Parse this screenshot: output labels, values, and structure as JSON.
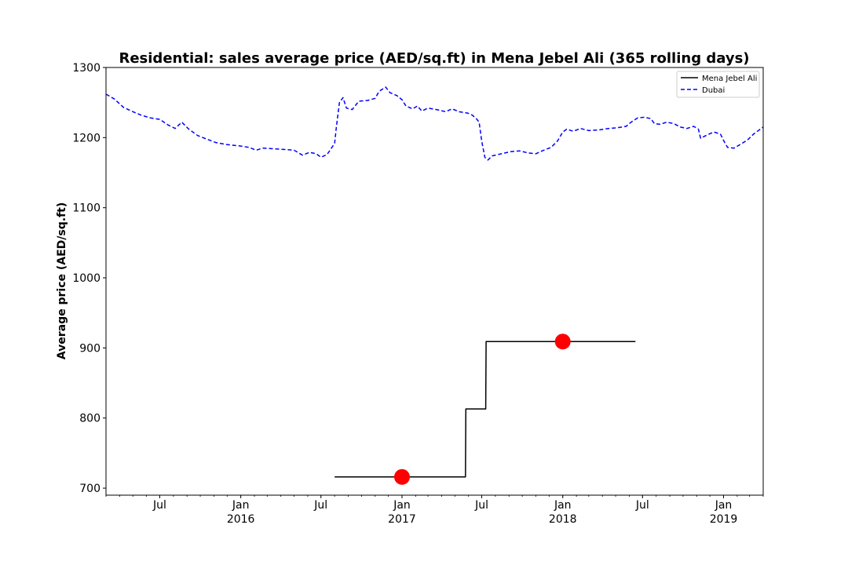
{
  "chart_data": {
    "type": "line",
    "title": "Residential: sales average price (AED/sq.ft) in Mena Jebel Ali (365 rolling days)",
    "xlabel": "",
    "ylabel": "Average price (AED/sq.ft)",
    "xlim": [
      "2015-03-01",
      "2019-04-01"
    ],
    "ylim": [
      690,
      1300
    ],
    "yticks": [
      700,
      800,
      900,
      1000,
      1100,
      1200,
      1300
    ],
    "xticks": [
      {
        "date": "2015-07-01",
        "label": "Jul",
        "year": ""
      },
      {
        "date": "2016-01-01",
        "label": "Jan",
        "year": "2016"
      },
      {
        "date": "2016-07-01",
        "label": "Jul",
        "year": ""
      },
      {
        "date": "2017-01-01",
        "label": "Jan",
        "year": "2017"
      },
      {
        "date": "2017-07-01",
        "label": "Jul",
        "year": ""
      },
      {
        "date": "2018-01-01",
        "label": "Jan",
        "year": "2018"
      },
      {
        "date": "2018-07-01",
        "label": "Jul",
        "year": ""
      },
      {
        "date": "2019-01-01",
        "label": "Jan",
        "year": "2019"
      }
    ],
    "grid": false,
    "legend_position": "top-right",
    "series": [
      {
        "name": "Mena Jebel Ali",
        "color": "#000000",
        "style": "solid",
        "step": true,
        "points": [
          [
            "2016-08-01",
            716
          ],
          [
            "2017-05-25",
            716
          ],
          [
            "2017-05-26",
            813
          ],
          [
            "2017-07-10",
            813
          ],
          [
            "2017-07-11",
            909
          ],
          [
            "2018-06-15",
            909
          ]
        ]
      },
      {
        "name": "Dubai",
        "color": "#0000ff",
        "style": "dashed",
        "step": false,
        "points": [
          [
            "2015-03-01",
            1262
          ],
          [
            "2015-03-20",
            1255
          ],
          [
            "2015-04-10",
            1243
          ],
          [
            "2015-05-01",
            1237
          ],
          [
            "2015-05-20",
            1232
          ],
          [
            "2015-06-10",
            1228
          ],
          [
            "2015-07-01",
            1226
          ],
          [
            "2015-07-20",
            1218
          ],
          [
            "2015-08-05",
            1213
          ],
          [
            "2015-08-20",
            1222
          ],
          [
            "2015-09-05",
            1212
          ],
          [
            "2015-09-25",
            1203
          ],
          [
            "2015-10-15",
            1198
          ],
          [
            "2015-11-05",
            1193
          ],
          [
            "2015-12-01",
            1190
          ],
          [
            "2016-01-01",
            1188
          ],
          [
            "2016-01-20",
            1186
          ],
          [
            "2016-02-05",
            1182
          ],
          [
            "2016-02-20",
            1185
          ],
          [
            "2016-03-15",
            1184
          ],
          [
            "2016-04-10",
            1183
          ],
          [
            "2016-05-01",
            1182
          ],
          [
            "2016-05-20",
            1175
          ],
          [
            "2016-06-05",
            1179
          ],
          [
            "2016-06-20",
            1177
          ],
          [
            "2016-07-01",
            1172
          ],
          [
            "2016-07-15",
            1176
          ],
          [
            "2016-07-25",
            1185
          ],
          [
            "2016-08-01",
            1192
          ],
          [
            "2016-08-05",
            1215
          ],
          [
            "2016-08-12",
            1250
          ],
          [
            "2016-08-20",
            1257
          ],
          [
            "2016-08-28",
            1242
          ],
          [
            "2016-09-10",
            1240
          ],
          [
            "2016-09-25",
            1252
          ],
          [
            "2016-10-15",
            1253
          ],
          [
            "2016-11-01",
            1256
          ],
          [
            "2016-11-10",
            1266
          ],
          [
            "2016-11-25",
            1272
          ],
          [
            "2016-12-05",
            1264
          ],
          [
            "2016-12-20",
            1260
          ],
          [
            "2017-01-01",
            1254
          ],
          [
            "2017-01-10",
            1245
          ],
          [
            "2017-01-25",
            1241
          ],
          [
            "2017-02-05",
            1245
          ],
          [
            "2017-02-15",
            1238
          ],
          [
            "2017-03-01",
            1242
          ],
          [
            "2017-03-20",
            1240
          ],
          [
            "2017-04-10",
            1237
          ],
          [
            "2017-04-25",
            1241
          ],
          [
            "2017-05-10",
            1237
          ],
          [
            "2017-05-30",
            1235
          ],
          [
            "2017-06-10",
            1232
          ],
          [
            "2017-06-20",
            1226
          ],
          [
            "2017-06-25",
            1222
          ],
          [
            "2017-07-01",
            1195
          ],
          [
            "2017-07-08",
            1172
          ],
          [
            "2017-07-15",
            1168
          ],
          [
            "2017-07-25",
            1174
          ],
          [
            "2017-08-15",
            1177
          ],
          [
            "2017-09-05",
            1180
          ],
          [
            "2017-09-25",
            1181
          ],
          [
            "2017-10-15",
            1178
          ],
          [
            "2017-11-01",
            1177
          ],
          [
            "2017-11-15",
            1181
          ],
          [
            "2017-12-05",
            1186
          ],
          [
            "2017-12-20",
            1195
          ],
          [
            "2018-01-01",
            1208
          ],
          [
            "2018-01-10",
            1212
          ],
          [
            "2018-01-25",
            1209
          ],
          [
            "2018-02-10",
            1213
          ],
          [
            "2018-03-01",
            1210
          ],
          [
            "2018-03-25",
            1211
          ],
          [
            "2018-04-15",
            1213
          ],
          [
            "2018-05-05",
            1214
          ],
          [
            "2018-05-25",
            1216
          ],
          [
            "2018-06-05",
            1222
          ],
          [
            "2018-06-20",
            1228
          ],
          [
            "2018-07-05",
            1229
          ],
          [
            "2018-07-20",
            1227
          ],
          [
            "2018-07-28",
            1220
          ],
          [
            "2018-08-10",
            1219
          ],
          [
            "2018-08-25",
            1222
          ],
          [
            "2018-09-10",
            1220
          ],
          [
            "2018-09-25",
            1215
          ],
          [
            "2018-10-10",
            1213
          ],
          [
            "2018-10-25",
            1216
          ],
          [
            "2018-11-05",
            1212
          ],
          [
            "2018-11-10",
            1199
          ],
          [
            "2018-11-25",
            1204
          ],
          [
            "2018-12-10",
            1208
          ],
          [
            "2018-12-25",
            1205
          ],
          [
            "2019-01-01",
            1196
          ],
          [
            "2019-01-10",
            1186
          ],
          [
            "2019-01-25",
            1185
          ],
          [
            "2019-02-10",
            1191
          ],
          [
            "2019-02-25",
            1197
          ],
          [
            "2019-03-10",
            1205
          ],
          [
            "2019-04-01",
            1215
          ]
        ]
      }
    ],
    "markers": [
      {
        "date": "2017-01-01",
        "value": 716,
        "color": "#ff0000"
      },
      {
        "date": "2018-01-01",
        "value": 909,
        "color": "#ff0000"
      }
    ]
  }
}
